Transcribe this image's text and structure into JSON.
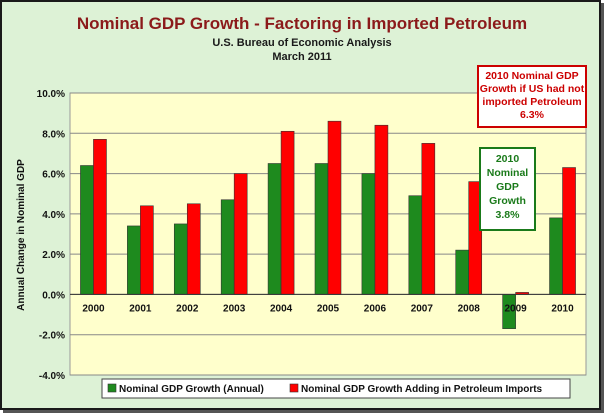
{
  "chart_data": {
    "type": "bar",
    "title": "Nominal GDP Growth - Factoring in Imported Petroleum",
    "subtitle": [
      "U.S. Bureau of Economic Analysis",
      "March 2011"
    ],
    "ylabel": "Annual Change in Nominal GDP",
    "xlabel": "",
    "ylim": [
      -4.0,
      10.0
    ],
    "yticks": [
      "-4.0%",
      "-2.0%",
      "0.0%",
      "2.0%",
      "4.0%",
      "6.0%",
      "8.0%",
      "10.0%"
    ],
    "grid": true,
    "legend_position": "bottom",
    "categories": [
      "2000",
      "2001",
      "2002",
      "2003",
      "2004",
      "2005",
      "2006",
      "2007",
      "2008",
      "2009",
      "2010"
    ],
    "series": [
      {
        "name": "Nominal GDP Growth (Annual)",
        "color": "#1e8a1e",
        "values": [
          6.4,
          3.4,
          3.5,
          4.7,
          6.5,
          6.5,
          6.0,
          4.9,
          2.2,
          -1.7,
          3.8
        ]
      },
      {
        "name": "Nominal GDP Growth Adding in Petroleum Imports",
        "color": "#ff0000",
        "values": [
          7.7,
          4.4,
          4.5,
          6.0,
          8.1,
          8.6,
          8.4,
          7.5,
          5.6,
          0.1,
          6.3
        ]
      }
    ],
    "annotations": [
      {
        "lines": [
          "2010 Nominal GDP",
          "Growth if US had not",
          "imported Petroleum",
          "6.3%"
        ],
        "color": "#cc0000"
      },
      {
        "lines": [
          "2010",
          "Nominal",
          "GDP",
          "Growth",
          "3.8%"
        ],
        "color": "#1a7a1a"
      }
    ]
  },
  "colors": {
    "background": "#ddf2d6",
    "plot_area": "#ffffcc",
    "gridline": "#888888"
  }
}
